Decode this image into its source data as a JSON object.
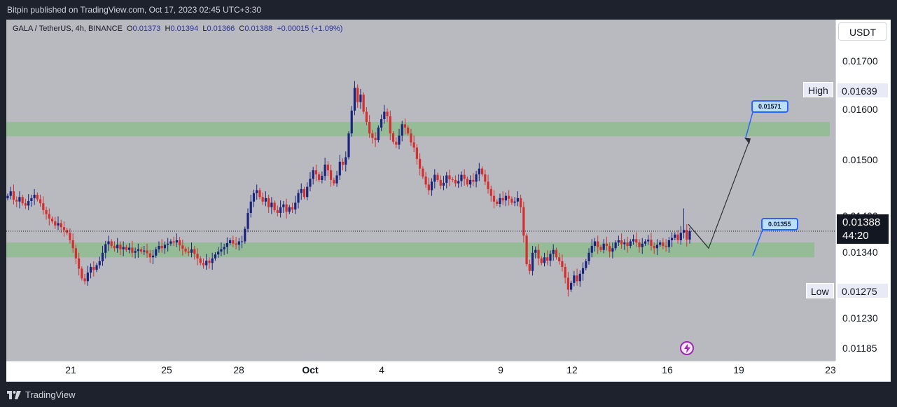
{
  "header": {
    "published": "Bitpin published on TradingView.com, Oct 17, 2023 02:45 UTC+3:30"
  },
  "legend": {
    "symbol": "GALA / TetherUS, 4h, BINANCE",
    "o_label": "O",
    "o": "0.01373",
    "h_label": "H",
    "h": "0.01394",
    "l_label": "L",
    "l": "0.01366",
    "c_label": "C",
    "c": "0.01388",
    "change": "+0.00015 (+1.09%)"
  },
  "currency_button": "USDT",
  "price_axis": [
    "0.01700",
    "0.01600",
    "0.01500",
    "0.01400",
    "0.01340",
    "0.01230",
    "0.01185"
  ],
  "high": {
    "label": "High",
    "value": "0.01639"
  },
  "low": {
    "label": "Low",
    "value": "0.01275"
  },
  "current": {
    "price": "0.01388",
    "countdown": "44:20"
  },
  "time_axis": [
    "21",
    "25",
    "28",
    "Oct",
    "4",
    "9",
    "12",
    "16",
    "19",
    "23"
  ],
  "callouts": {
    "target": "0.01571",
    "support": "0.01355"
  },
  "footer": {
    "brand": "TradingView"
  },
  "colors": {
    "up": "#1a237e",
    "down": "#d32f2f",
    "zone": "#8fbc8f",
    "callout_border": "#2962ff"
  },
  "icons": {
    "lightning": "lightning-icon",
    "logo": "tradingview-logo-icon"
  },
  "chart_data": {
    "type": "candlestick",
    "symbol": "GALA / TetherUS",
    "interval": "4h",
    "exchange": "BINANCE",
    "ohlc_last": {
      "open": 0.01373,
      "high": 0.01394,
      "low": 0.01366,
      "close": 0.01388
    },
    "zones": [
      {
        "name": "resistance",
        "from": 0.01555,
        "to": 0.0158
      },
      {
        "name": "support",
        "from": 0.01342,
        "to": 0.01368
      }
    ],
    "projection": [
      {
        "label": "target",
        "value": 0.01571
      },
      {
        "label": "support",
        "value": 0.01355
      }
    ],
    "closes": [
      0.0145,
      0.01458,
      0.01443,
      0.0144,
      0.01448,
      0.01437,
      0.01433,
      0.01441,
      0.01446,
      0.01452,
      0.01444,
      0.01437,
      0.01425,
      0.01418,
      0.0141,
      0.01405,
      0.01398,
      0.01402,
      0.01395,
      0.0139,
      0.01385,
      0.01372,
      0.01358,
      0.0134,
      0.01322,
      0.01305,
      0.013,
      0.01315,
      0.01325,
      0.0132,
      0.01328,
      0.01335,
      0.0135,
      0.01365,
      0.0137,
      0.01362,
      0.01358,
      0.01364,
      0.01356,
      0.0136,
      0.01355,
      0.01359,
      0.0135,
      0.01353,
      0.01356,
      0.01352,
      0.01354,
      0.01349,
      0.01342,
      0.01345,
      0.01356,
      0.01362,
      0.01358,
      0.01364,
      0.01366,
      0.0137,
      0.01368,
      0.01372,
      0.01363,
      0.01357,
      0.01352,
      0.0135,
      0.01356,
      0.01348,
      0.0134,
      0.01332,
      0.01328,
      0.01336,
      0.01332,
      0.0134,
      0.01347,
      0.01352,
      0.01356,
      0.0136,
      0.01367,
      0.01372,
      0.01366,
      0.01364,
      0.0137,
      0.0137,
      0.01392,
      0.0142,
      0.0144,
      0.01455,
      0.0146,
      0.01448,
      0.0144,
      0.01446,
      0.0143,
      0.01438,
      0.01425,
      0.0142,
      0.0143,
      0.01435,
      0.01422,
      0.0143,
      0.01426,
      0.01438,
      0.01455,
      0.01462,
      0.01448,
      0.01466,
      0.0148,
      0.01495,
      0.01488,
      0.01478,
      0.01485,
      0.01505,
      0.01495,
      0.01478,
      0.01472,
      0.01486,
      0.0151,
      0.01505,
      0.01518,
      0.0156,
      0.016,
      0.0164,
      0.01615,
      0.01628,
      0.01598,
      0.0158,
      0.0156,
      0.01552,
      0.01548,
      0.0157,
      0.01585,
      0.01598,
      0.0159,
      0.0156,
      0.01545,
      0.0154,
      0.01556,
      0.01576,
      0.0157,
      0.0156,
      0.01544,
      0.01535,
      0.01515,
      0.01498,
      0.01484,
      0.0147,
      0.0146,
      0.01475,
      0.01487,
      0.01478,
      0.01468,
      0.01473,
      0.01486,
      0.01479,
      0.01478,
      0.01472,
      0.01476,
      0.01487,
      0.0148,
      0.0147,
      0.01478,
      0.01475,
      0.01488,
      0.01498,
      0.01488,
      0.01475,
      0.01462,
      0.0145,
      0.0144,
      0.01436,
      0.01446,
      0.01442,
      0.0145,
      0.01445,
      0.01438,
      0.0144,
      0.01446,
      0.0143,
      0.0138,
      0.0133,
      0.01318,
      0.0135,
      0.01355,
      0.0134,
      0.01332,
      0.01342,
      0.01336,
      0.01348,
      0.01355,
      0.01342,
      0.01335,
      0.01325,
      0.01306,
      0.01285,
      0.01297,
      0.0131,
      0.013,
      0.01313,
      0.01323,
      0.01335,
      0.0135,
      0.01362,
      0.0137,
      0.0136,
      0.01355,
      0.01366,
      0.01362,
      0.01352,
      0.01358,
      0.01368,
      0.01372,
      0.01365,
      0.01368,
      0.01362,
      0.0137,
      0.01374,
      0.01368,
      0.0136,
      0.01366,
      0.0137,
      0.01373,
      0.01362,
      0.01358,
      0.01364,
      0.01368,
      0.01362,
      0.0136,
      0.01372,
      0.01376,
      0.01382,
      0.01372,
      0.01385,
      0.0139,
      0.01373,
      0.01388
    ],
    "price_range": [
      0.0116,
      0.0176
    ],
    "x_labels": [
      "21",
      "25",
      "28",
      "Oct",
      "4",
      "9",
      "12",
      "16",
      "19",
      "23"
    ],
    "grid": false
  }
}
